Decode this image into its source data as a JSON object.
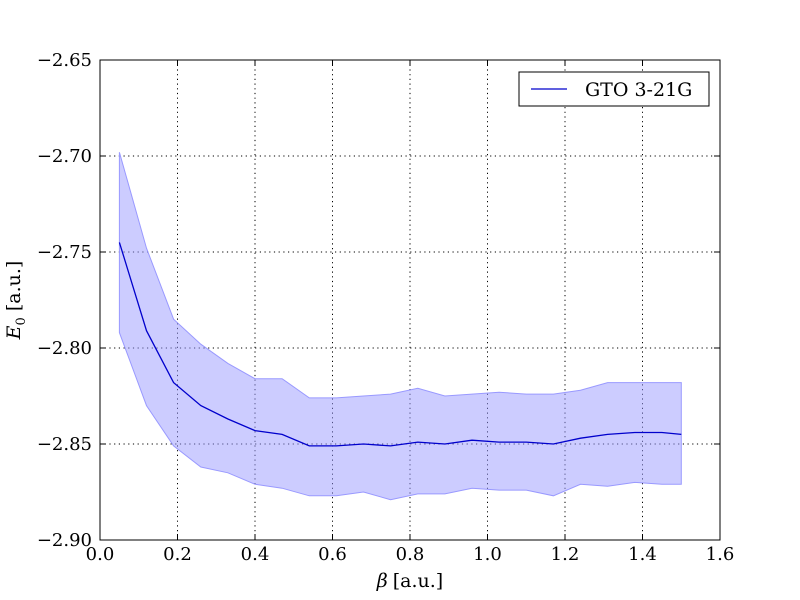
{
  "chart_data": {
    "type": "line",
    "title": "",
    "xlabel": "[a.u.]",
    "xlabel_symbol": "β",
    "ylabel": "[a.u.]",
    "ylabel_symbol": "E",
    "ylabel_subscript": "0",
    "xlim": [
      0.0,
      1.6
    ],
    "ylim": [
      -2.9,
      -2.65
    ],
    "xticks": [
      0.0,
      0.2,
      0.4,
      0.6,
      0.8,
      1.0,
      1.2,
      1.4,
      1.6
    ],
    "xtick_labels": [
      "0.0",
      "0.2",
      "0.4",
      "0.6",
      "0.8",
      "1.0",
      "1.2",
      "1.4",
      "1.6"
    ],
    "yticks": [
      -2.9,
      -2.85,
      -2.8,
      -2.75,
      -2.7,
      -2.65
    ],
    "ytick_labels": [
      "−2.90",
      "−2.85",
      "−2.80",
      "−2.75",
      "−2.70",
      "−2.65"
    ],
    "grid": true,
    "legend_position": "top-right",
    "colors": {
      "line": "#0000cc",
      "band": "#9999ff"
    },
    "x": [
      0.05,
      0.12,
      0.19,
      0.26,
      0.33,
      0.4,
      0.47,
      0.54,
      0.61,
      0.68,
      0.75,
      0.82,
      0.89,
      0.96,
      1.03,
      1.1,
      1.17,
      1.24,
      1.31,
      1.38,
      1.45,
      1.5
    ],
    "series": [
      {
        "name": "GTO 3-21G",
        "values": [
          -2.745,
          -2.791,
          -2.818,
          -2.83,
          -2.837,
          -2.843,
          -2.845,
          -2.851,
          -2.851,
          -2.85,
          -2.851,
          -2.849,
          -2.85,
          -2.848,
          -2.849,
          -2.849,
          -2.85,
          -2.847,
          -2.845,
          -2.844,
          -2.844,
          -2.845
        ],
        "upper": [
          -2.698,
          -2.748,
          -2.785,
          -2.798,
          -2.808,
          -2.816,
          -2.816,
          -2.826,
          -2.826,
          -2.825,
          -2.824,
          -2.821,
          -2.825,
          -2.824,
          -2.823,
          -2.824,
          -2.824,
          -2.822,
          -2.818,
          -2.818,
          -2.818,
          -2.818
        ],
        "lower": [
          -2.792,
          -2.83,
          -2.851,
          -2.862,
          -2.865,
          -2.871,
          -2.873,
          -2.877,
          -2.877,
          -2.875,
          -2.879,
          -2.876,
          -2.876,
          -2.873,
          -2.874,
          -2.874,
          -2.877,
          -2.871,
          -2.872,
          -2.87,
          -2.871,
          -2.871
        ]
      }
    ]
  }
}
